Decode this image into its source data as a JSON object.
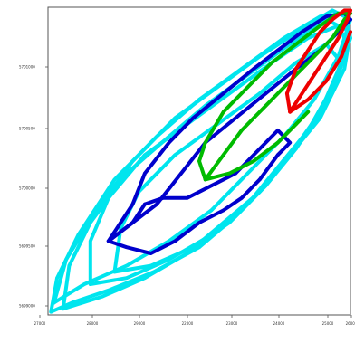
{
  "chart_data": {
    "type": "line",
    "title": "",
    "xlabel": "",
    "ylabel": "",
    "xlim": [
      0,
      100
    ],
    "ylim": [
      0,
      100
    ],
    "grid": false,
    "legend": "none",
    "x_tick_labels": [
      "27000",
      "28000",
      "29000",
      "22000",
      "23000",
      "24000",
      "25000",
      "26000"
    ],
    "y_tick_labels": [
      "5701000",
      "5700500",
      "5700000",
      "5699500",
      "5699000"
    ],
    "x_ticks": [
      2,
      17.5,
      33,
      49,
      65,
      81,
      96.5,
      112
    ],
    "y_ticks": [
      78,
      58,
      39,
      21,
      2
    ],
    "series": [
      {
        "color": "#00e5ee",
        "stroke": 4,
        "loops": [
          [
            [
              1,
              1
            ],
            [
              8,
              4
            ],
            [
              20,
              8
            ],
            [
              35,
              14
            ],
            [
              50,
              22
            ],
            [
              62,
              32
            ],
            [
              72,
              42
            ],
            [
              82,
              54
            ],
            [
              90,
              66
            ],
            [
              96,
              78
            ],
            [
              100,
              90
            ],
            [
              98,
              98
            ],
            [
              90,
              97
            ],
            [
              78,
              90
            ],
            [
              64,
              80
            ],
            [
              50,
              70
            ],
            [
              36,
              58
            ],
            [
              22,
              44
            ],
            [
              10,
              26
            ],
            [
              3,
              12
            ],
            [
              1,
              1
            ]
          ],
          [
            [
              2,
              4
            ],
            [
              12,
              10
            ],
            [
              26,
              16
            ],
            [
              40,
              24
            ],
            [
              54,
              34
            ],
            [
              66,
              46
            ],
            [
              78,
              58
            ],
            [
              88,
              70
            ],
            [
              96,
              84
            ],
            [
              100,
              96
            ],
            [
              94,
              99
            ],
            [
              84,
              93
            ],
            [
              70,
              84
            ],
            [
              56,
              74
            ],
            [
              42,
              64
            ],
            [
              28,
              50
            ],
            [
              16,
              34
            ],
            [
              6,
              18
            ],
            [
              2,
              4
            ]
          ],
          [
            [
              5,
              2
            ],
            [
              18,
              6
            ],
            [
              32,
              12
            ],
            [
              46,
              20
            ],
            [
              58,
              30
            ],
            [
              70,
              40
            ],
            [
              80,
              52
            ],
            [
              90,
              64
            ],
            [
              98,
              80
            ],
            [
              100,
              92
            ],
            [
              92,
              96
            ],
            [
              80,
              88
            ],
            [
              66,
              78
            ],
            [
              52,
              68
            ],
            [
              40,
              58
            ],
            [
              26,
              46
            ],
            [
              14,
              30
            ],
            [
              7,
              16
            ],
            [
              5,
              2
            ]
          ],
          [
            [
              14,
              10
            ],
            [
              26,
              12
            ],
            [
              40,
              18
            ],
            [
              54,
              26
            ],
            [
              66,
              36
            ],
            [
              76,
              48
            ],
            [
              86,
              60
            ],
            [
              94,
              74
            ],
            [
              99,
              88
            ],
            [
              96,
              94
            ],
            [
              86,
              90
            ],
            [
              74,
              82
            ],
            [
              60,
              72
            ],
            [
              46,
              62
            ],
            [
              32,
              52
            ],
            [
              20,
              38
            ],
            [
              14,
              24
            ],
            [
              14,
              10
            ]
          ],
          [
            [
              22,
              14
            ],
            [
              34,
              16
            ],
            [
              48,
              22
            ],
            [
              60,
              30
            ],
            [
              70,
              40
            ],
            [
              80,
              52
            ],
            [
              90,
              66
            ],
            [
              97,
              82
            ],
            [
              92,
              88
            ],
            [
              82,
              82
            ],
            [
              70,
              72
            ],
            [
              56,
              62
            ],
            [
              42,
              52
            ],
            [
              30,
              40
            ],
            [
              24,
              28
            ],
            [
              22,
              14
            ]
          ]
        ]
      },
      {
        "color": "#0000cc",
        "stroke": 4,
        "loops": [
          [
            [
              20,
              24
            ],
            [
              28,
              30
            ],
            [
              36,
              36
            ],
            [
              44,
              46
            ],
            [
              52,
              56
            ],
            [
              62,
              64
            ],
            [
              72,
              72
            ],
            [
              82,
              80
            ],
            [
              90,
              86
            ],
            [
              96,
              92
            ],
            [
              100,
              96
            ],
            [
              98,
              98
            ],
            [
              92,
              97
            ],
            [
              84,
              92
            ],
            [
              76,
              86
            ],
            [
              68,
              80
            ],
            [
              58,
              72
            ],
            [
              48,
              64
            ],
            [
              40,
              56
            ],
            [
              32,
              46
            ],
            [
              28,
              36
            ],
            [
              24,
              30
            ],
            [
              20,
              24
            ]
          ],
          [
            [
              20,
              24
            ],
            [
              26,
              22
            ],
            [
              34,
              20
            ],
            [
              42,
              24
            ],
            [
              50,
              30
            ],
            [
              58,
              34
            ],
            [
              64,
              38
            ],
            [
              70,
              44
            ],
            [
              76,
              52
            ],
            [
              80,
              56
            ],
            [
              76,
              60
            ],
            [
              70,
              54
            ],
            [
              62,
              46
            ],
            [
              54,
              42
            ],
            [
              46,
              38
            ],
            [
              38,
              38
            ],
            [
              32,
              36
            ],
            [
              28,
              30
            ],
            [
              20,
              24
            ]
          ]
        ]
      },
      {
        "color": "#00bb00",
        "stroke": 4,
        "loops": [
          [
            [
              52,
              44
            ],
            [
              58,
              52
            ],
            [
              64,
              60
            ],
            [
              72,
              68
            ],
            [
              80,
              76
            ],
            [
              88,
              84
            ],
            [
              94,
              90
            ],
            [
              98,
              96
            ],
            [
              100,
              98
            ],
            [
              96,
              98
            ],
            [
              90,
              94
            ],
            [
              82,
              88
            ],
            [
              74,
              82
            ],
            [
              66,
              74
            ],
            [
              58,
              66
            ],
            [
              52,
              56
            ],
            [
              50,
              50
            ],
            [
              52,
              44
            ]
          ],
          [
            [
              52,
              44
            ],
            [
              60,
              46
            ],
            [
              68,
              50
            ],
            [
              76,
              56
            ],
            [
              82,
              62
            ],
            [
              86,
              66
            ]
          ]
        ]
      },
      {
        "color": "#ee0000",
        "stroke": 4,
        "loops": [
          [
            [
              80,
              66
            ],
            [
              84,
              72
            ],
            [
              88,
              78
            ],
            [
              92,
              84
            ],
            [
              96,
              90
            ],
            [
              99,
              96
            ],
            [
              100,
              99
            ],
            [
              98,
              99
            ],
            [
              94,
              96
            ],
            [
              90,
              92
            ],
            [
              86,
              86
            ],
            [
              82,
              80
            ],
            [
              79,
              72
            ],
            [
              80,
              66
            ]
          ],
          [
            [
              80,
              66
            ],
            [
              86,
              70
            ],
            [
              92,
              76
            ],
            [
              97,
              84
            ],
            [
              100,
              92
            ]
          ]
        ]
      }
    ]
  }
}
